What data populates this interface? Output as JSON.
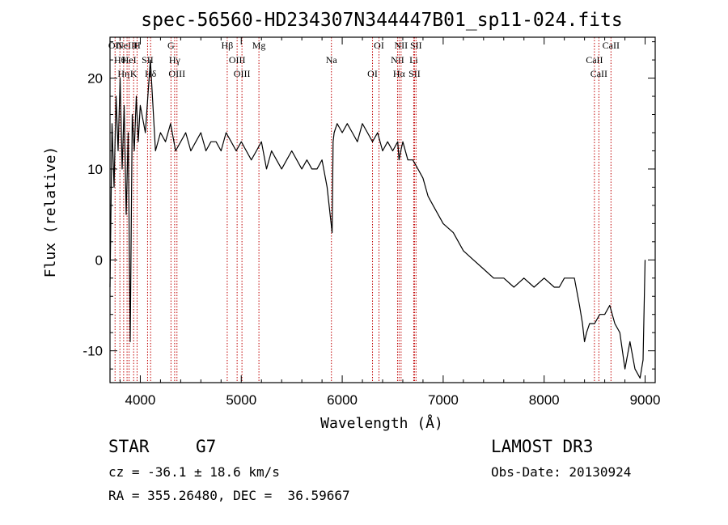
{
  "chart_data": {
    "type": "line",
    "title": "spec-56560-HD234307N344447B01_sp11-024.fits",
    "xlabel": "Wavelength (Å)",
    "ylabel": "Flux (relative)",
    "xlim": [
      3700,
      9100
    ],
    "ylim": [
      -13.5,
      24.5
    ],
    "xticks": [
      4000,
      5000,
      6000,
      7000,
      8000,
      9000
    ],
    "yticks": [
      -10,
      0,
      10,
      20
    ],
    "series": [
      {
        "name": "spectrum",
        "x": [
          3700,
          3720,
          3740,
          3760,
          3780,
          3800,
          3820,
          3840,
          3860,
          3880,
          3900,
          3920,
          3940,
          3960,
          3980,
          4000,
          4050,
          4100,
          4150,
          4200,
          4250,
          4300,
          4350,
          4400,
          4450,
          4500,
          4550,
          4600,
          4650,
          4700,
          4750,
          4800,
          4850,
          4900,
          4950,
          5000,
          5050,
          5100,
          5150,
          5200,
          5250,
          5300,
          5350,
          5400,
          5450,
          5500,
          5550,
          5600,
          5650,
          5700,
          5750,
          5800,
          5850,
          5880,
          5900,
          5910,
          5920,
          5950,
          6000,
          6050,
          6100,
          6150,
          6200,
          6250,
          6300,
          6350,
          6400,
          6450,
          6500,
          6550,
          6563,
          6580,
          6600,
          6650,
          6700,
          6750,
          6800,
          6850,
          6900,
          6950,
          7000,
          7100,
          7200,
          7300,
          7400,
          7500,
          7600,
          7700,
          7800,
          7900,
          8000,
          8100,
          8150,
          8200,
          8250,
          8300,
          8350,
          8380,
          8400,
          8420,
          8450,
          8500,
          8550,
          8600,
          8650,
          8700,
          8750,
          8800,
          8850,
          8900,
          8950,
          8980,
          9000
        ],
        "values": [
          -3,
          15,
          8,
          18,
          12,
          20,
          10,
          17,
          5,
          14,
          -9,
          16,
          12,
          18,
          13,
          17,
          14,
          22,
          12,
          14,
          13,
          15,
          12,
          13,
          14,
          12,
          13,
          14,
          12,
          13,
          13,
          12,
          14,
          13,
          12,
          13,
          12,
          11,
          12,
          13,
          10,
          12,
          11,
          10,
          11,
          12,
          11,
          10,
          11,
          10,
          10,
          11,
          8,
          5,
          3,
          13,
          14,
          15,
          14,
          15,
          14,
          13,
          15,
          14,
          13,
          14,
          12,
          13,
          12,
          13,
          11,
          12,
          13,
          11,
          11,
          10,
          9,
          7,
          6,
          5,
          4,
          3,
          1,
          0,
          -1,
          -2,
          -2,
          -3,
          -2,
          -3,
          -2,
          -3,
          -3,
          -2,
          -2,
          -2,
          -5,
          -7,
          -9,
          -8,
          -7,
          -7,
          -6,
          -6,
          -5,
          -7,
          -8,
          -12,
          -9,
          -12,
          -13,
          -11,
          0
        ]
      }
    ],
    "line_markers": [
      {
        "wl": 3750,
        "label": "OII"
      },
      {
        "wl": 3798,
        "label": "Hθ"
      },
      {
        "wl": 3835,
        "label": "Hη"
      },
      {
        "wl": 3869,
        "label": "NeIII"
      },
      {
        "wl": 3889,
        "label": "HeI"
      },
      {
        "wl": 3934,
        "label": "K"
      },
      {
        "wl": 3968,
        "label": "H"
      },
      {
        "wl": 4072,
        "label": "SII"
      },
      {
        "wl": 4102,
        "label": "Hδ"
      },
      {
        "wl": 4304,
        "label": "G"
      },
      {
        "wl": 4340,
        "label": "Hγ"
      },
      {
        "wl": 4363,
        "label": "OIII"
      },
      {
        "wl": 4861,
        "label": "Hβ"
      },
      {
        "wl": 4959,
        "label": "OIII"
      },
      {
        "wl": 5007,
        "label": "OIII"
      },
      {
        "wl": 5175,
        "label": "Mg"
      },
      {
        "wl": 5893,
        "label": "Na"
      },
      {
        "wl": 6300,
        "label": "OI"
      },
      {
        "wl": 6364,
        "label": "OI"
      },
      {
        "wl": 6548,
        "label": "NII"
      },
      {
        "wl": 6563,
        "label": "Hα"
      },
      {
        "wl": 6583,
        "label": "NII"
      },
      {
        "wl": 6708,
        "label": "Li"
      },
      {
        "wl": 6716,
        "label": "SII"
      },
      {
        "wl": 6731,
        "label": "SII"
      },
      {
        "wl": 8498,
        "label": "CaII"
      },
      {
        "wl": 8542,
        "label": "CaII"
      },
      {
        "wl": 8662,
        "label": "CaII"
      }
    ]
  },
  "info": {
    "class": "STAR",
    "subclass": "G7",
    "survey": "LAMOST DR3",
    "cz": "cz = -36.1 ± 18.6 km/s",
    "obs_date": "Obs-Date: 20130924",
    "radec": "RA = 355.26480, DEC =  36.59667"
  }
}
